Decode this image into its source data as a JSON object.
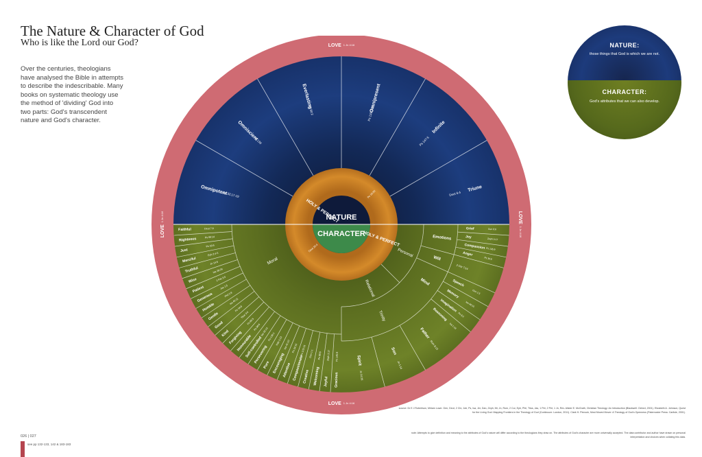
{
  "header": {
    "title": "The Nature & Character of God",
    "subtitle": "Who is like the Lord our God?"
  },
  "intro_text": "Over the centuries, theologians have analysed the Bible in attempts to describe the indescribable. Many books on systematic theology use the method of 'dividing' God into two parts: God's transcendent nature and God's character.",
  "wheel": {
    "outer_ring_label": "LOVE",
    "outer_ring_ref": "1 Jn 4:16",
    "holy_label": "HOLY & PERFECT",
    "holy_ref_left": "Deut 32:4",
    "holy_ref_right": "Ps 18:30",
    "center_top": "NATURE",
    "center_bottom": "CHARACTER",
    "nature_attributes": [
      {
        "label": "Omnipotent",
        "ref": "Jer 32:17-19"
      },
      {
        "label": "Omniscient",
        "ref": "Ps 139"
      },
      {
        "label": "Everlasting",
        "ref": "Ps 90:2"
      },
      {
        "label": "Omnipresent",
        "ref": "Ps 139:7-10"
      },
      {
        "label": "Infinite",
        "ref": "Ps 147:5"
      },
      {
        "label": "Triune",
        "ref": "Deut 6:4"
      }
    ],
    "moral_label": "Moral",
    "moral_attributes": [
      {
        "label": "Faithful",
        "ref": "Deut 7:9"
      },
      {
        "label": "Righteous",
        "ref": "Ps 89:14"
      },
      {
        "label": "Just",
        "ref": "Ps 33:5"
      },
      {
        "label": "Merciful",
        "ref": "Eph 2:4-5"
      },
      {
        "label": "Truthful",
        "ref": "Jn 14:6"
      },
      {
        "label": "Wise",
        "ref": "Isa 28:29"
      },
      {
        "label": "Patient",
        "ref": "2 Pet 3:9"
      },
      {
        "label": "Generous",
        "ref": "Jas 1:5"
      },
      {
        "label": "Humble",
        "ref": "Phil 2:8"
      },
      {
        "label": "Gentle",
        "ref": "Isa 40:11"
      },
      {
        "label": "Good",
        "ref": "Ps 34:8"
      },
      {
        "label": "Kind",
        "ref": "Titus 3:4"
      },
      {
        "label": "Forgiving",
        "ref": "Ps 86:5"
      },
      {
        "label": "Honourable",
        "ref": "Ps 96:6"
      },
      {
        "label": "Self-controlled",
        "ref": "Isa 42:14"
      },
      {
        "label": "Persevering",
        "ref": "Ps 136:1"
      },
      {
        "label": "Pure",
        "ref": "Hab 1:13"
      },
      {
        "label": "Encouraging",
        "ref": "Isa 41:10"
      },
      {
        "label": "Attentive",
        "ref": "Ps 34:15"
      },
      {
        "label": "Compassionate",
        "ref": "Ps 103:13"
      },
      {
        "label": "Creative",
        "ref": "Gen 1:1"
      },
      {
        "label": "Welcoming",
        "ref": "Ps 68:6"
      },
      {
        "label": "Joyful",
        "ref": "Zeph 3:17"
      },
      {
        "label": "Gracious",
        "ref": "Ps 145:8"
      }
    ],
    "relational_label": "Relational",
    "personal_label": "Personal",
    "trinity_label": "Trinity",
    "trinity_members": [
      {
        "label": "Spirit",
        "ref": "Jn 14:26"
      },
      {
        "label": "Son",
        "ref": "Jn 1:14"
      },
      {
        "label": "Father",
        "ref": "Rom 8:15"
      }
    ],
    "personal_groups": [
      {
        "label": "Emotions",
        "items": [
          {
            "label": "Grief",
            "ref": "Gen 6:6"
          },
          {
            "label": "Joy",
            "ref": "Zeph 3:17"
          },
          {
            "label": "Compassion",
            "ref": "Ps 145:9"
          },
          {
            "label": "Anger",
            "ref": "Ps 30:5"
          }
        ]
      },
      {
        "label": "Will",
        "ref": "2 Chr 7:14",
        "items": []
      },
      {
        "label": "Mind",
        "items": [
          {
            "label": "Speech",
            "ref": "Gen 1:3"
          },
          {
            "label": "Memory",
            "ref": "Isa 49:15"
          },
          {
            "label": "Imagination",
            "ref": "Ps 8:3"
          },
          {
            "label": "Reasoning",
            "ref": "Isa 1:18"
          }
        ]
      }
    ]
  },
  "legend": {
    "nature_title": "NATURE:",
    "nature_text": "those things that God is which we are not.",
    "character_title": "CHARACTER:",
    "character_text": "God's attributes that we can also develop."
  },
  "footer": {
    "sources": "source: Dr E J Robertson, Miriam Lowe. Gen, Deut, 2 Chr, Job, Ps, Isa, Jer, Dan, Zeph, Mt, Jn, Rom, 2 Cor, Eph, Phil, Titus, Jas, 1 Pet, 2 Pet, 1 Jn, Rev. Alister E. McGrath, Christian Theology: An Introduction (Blackwell: Oxford, 2001). Elizabeth A. Johnson, Quest for the Living God: Mapping Frontiers in the Theology of God (Continuum: London, 2011). Clark H. Pinnock, Most Moved Mover: A Theology of God's Openness (Paternoster Press: Carlisle, 2001).",
    "note": "note: Attempts to give definition and meaning to the attributes of God's nature will differ according to the theologians they draw on. The attributes of God's character are more universally accepted. The data contributor and author have drawn on personal interpretation and choices when collating this data.",
    "page_numbers": "026 | 027",
    "refs": "see pp 132-133, 142 & 183-183"
  },
  "colors": {
    "outer_ring": "#cf6b73",
    "nature_blue": "#1c3a78",
    "character_green": "#5f7222",
    "holy_orange": "#c87d22",
    "center": "#0e1a3a"
  }
}
